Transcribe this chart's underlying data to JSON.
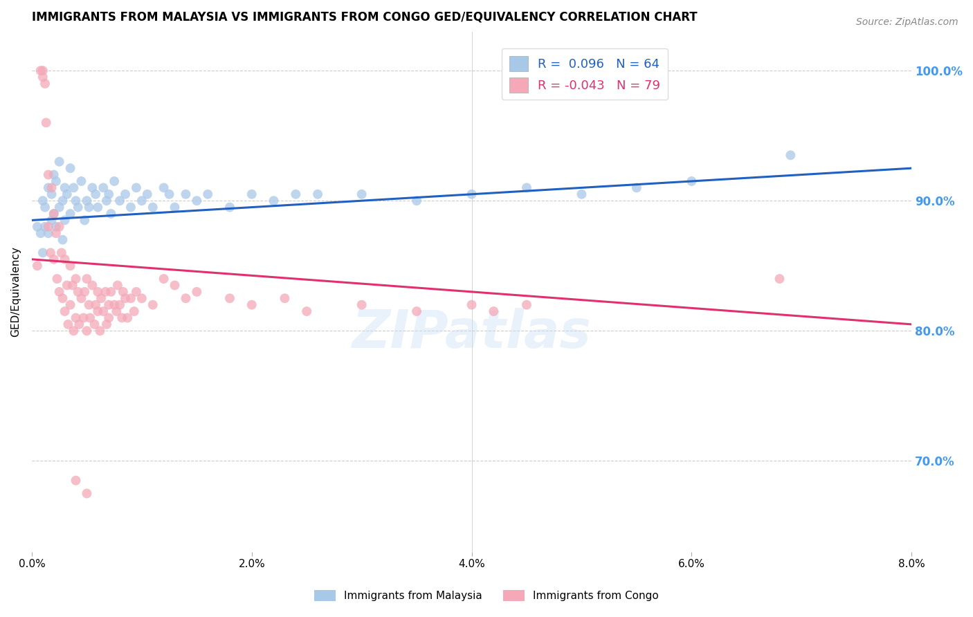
{
  "title": "IMMIGRANTS FROM MALAYSIA VS IMMIGRANTS FROM CONGO GED/EQUIVALENCY CORRELATION CHART",
  "source": "Source: ZipAtlas.com",
  "ylabel": "GED/Equivalency",
  "xlim": [
    0.0,
    8.0
  ],
  "ylim": [
    63.0,
    103.0
  ],
  "yticks": [
    70.0,
    80.0,
    90.0,
    100.0
  ],
  "xticks": [
    0.0,
    2.0,
    4.0,
    6.0,
    8.0
  ],
  "legend_blue_r": "0.096",
  "legend_blue_n": "64",
  "legend_pink_r": "-0.043",
  "legend_pink_n": "79",
  "blue_color": "#a8c8e8",
  "pink_color": "#f4a8b8",
  "blue_line_color": "#2060c0",
  "pink_line_color": "#e03070",
  "right_axis_color": "#4499ee",
  "watermark": "ZIPatlas",
  "malaysia_x": [
    0.05,
    0.08,
    0.1,
    0.1,
    0.12,
    0.12,
    0.15,
    0.15,
    0.18,
    0.18,
    0.2,
    0.2,
    0.22,
    0.22,
    0.25,
    0.25,
    0.28,
    0.28,
    0.3,
    0.3,
    0.32,
    0.35,
    0.35,
    0.38,
    0.4,
    0.42,
    0.45,
    0.48,
    0.5,
    0.52,
    0.55,
    0.58,
    0.6,
    0.65,
    0.68,
    0.7,
    0.72,
    0.75,
    0.8,
    0.85,
    0.9,
    0.95,
    1.0,
    1.05,
    1.1,
    1.2,
    1.25,
    1.3,
    1.4,
    1.5,
    1.6,
    1.8,
    2.0,
    2.2,
    2.4,
    2.6,
    3.0,
    3.5,
    4.0,
    4.5,
    5.0,
    5.5,
    6.0,
    6.9
  ],
  "malaysia_y": [
    88.0,
    87.5,
    90.0,
    86.0,
    89.5,
    88.0,
    91.0,
    87.5,
    90.5,
    88.5,
    92.0,
    89.0,
    91.5,
    88.0,
    93.0,
    89.5,
    90.0,
    87.0,
    91.0,
    88.5,
    90.5,
    89.0,
    92.5,
    91.0,
    90.0,
    89.5,
    91.5,
    88.5,
    90.0,
    89.5,
    91.0,
    90.5,
    89.5,
    91.0,
    90.0,
    90.5,
    89.0,
    91.5,
    90.0,
    90.5,
    89.5,
    91.0,
    90.0,
    90.5,
    89.5,
    91.0,
    90.5,
    89.5,
    90.5,
    90.0,
    90.5,
    89.5,
    90.5,
    90.0,
    90.5,
    90.5,
    90.5,
    90.0,
    90.5,
    91.0,
    90.5,
    91.0,
    91.5,
    93.5
  ],
  "congo_x": [
    0.05,
    0.08,
    0.1,
    0.1,
    0.12,
    0.13,
    0.15,
    0.15,
    0.17,
    0.18,
    0.2,
    0.2,
    0.22,
    0.23,
    0.25,
    0.25,
    0.27,
    0.28,
    0.3,
    0.3,
    0.32,
    0.33,
    0.35,
    0.35,
    0.37,
    0.38,
    0.4,
    0.4,
    0.42,
    0.43,
    0.45,
    0.47,
    0.48,
    0.5,
    0.5,
    0.52,
    0.53,
    0.55,
    0.57,
    0.58,
    0.6,
    0.6,
    0.62,
    0.63,
    0.65,
    0.67,
    0.68,
    0.7,
    0.7,
    0.72,
    0.75,
    0.77,
    0.78,
    0.8,
    0.82,
    0.83,
    0.85,
    0.87,
    0.9,
    0.93,
    0.95,
    1.0,
    1.1,
    1.2,
    1.3,
    1.4,
    1.5,
    1.8,
    2.0,
    2.3,
    2.5,
    3.0,
    3.5,
    4.0,
    4.2,
    4.5,
    6.8,
    0.4,
    0.5
  ],
  "congo_y": [
    85.0,
    100.0,
    99.5,
    100.0,
    99.0,
    96.0,
    92.0,
    88.0,
    86.0,
    91.0,
    89.0,
    85.5,
    87.5,
    84.0,
    88.0,
    83.0,
    86.0,
    82.5,
    85.5,
    81.5,
    83.5,
    80.5,
    85.0,
    82.0,
    83.5,
    80.0,
    84.0,
    81.0,
    83.0,
    80.5,
    82.5,
    81.0,
    83.0,
    84.0,
    80.0,
    82.0,
    81.0,
    83.5,
    80.5,
    82.0,
    81.5,
    83.0,
    80.0,
    82.5,
    81.5,
    83.0,
    80.5,
    82.0,
    81.0,
    83.0,
    82.0,
    81.5,
    83.5,
    82.0,
    81.0,
    83.0,
    82.5,
    81.0,
    82.5,
    81.5,
    83.0,
    82.5,
    82.0,
    84.0,
    83.5,
    82.5,
    83.0,
    82.5,
    82.0,
    82.5,
    81.5,
    82.0,
    81.5,
    82.0,
    81.5,
    82.0,
    84.0,
    68.5,
    67.5
  ],
  "malaysia_line_x": [
    0.0,
    8.0
  ],
  "malaysia_line_y": [
    88.5,
    92.5
  ],
  "congo_line_x": [
    0.0,
    8.0
  ],
  "congo_line_y": [
    85.5,
    80.5
  ]
}
